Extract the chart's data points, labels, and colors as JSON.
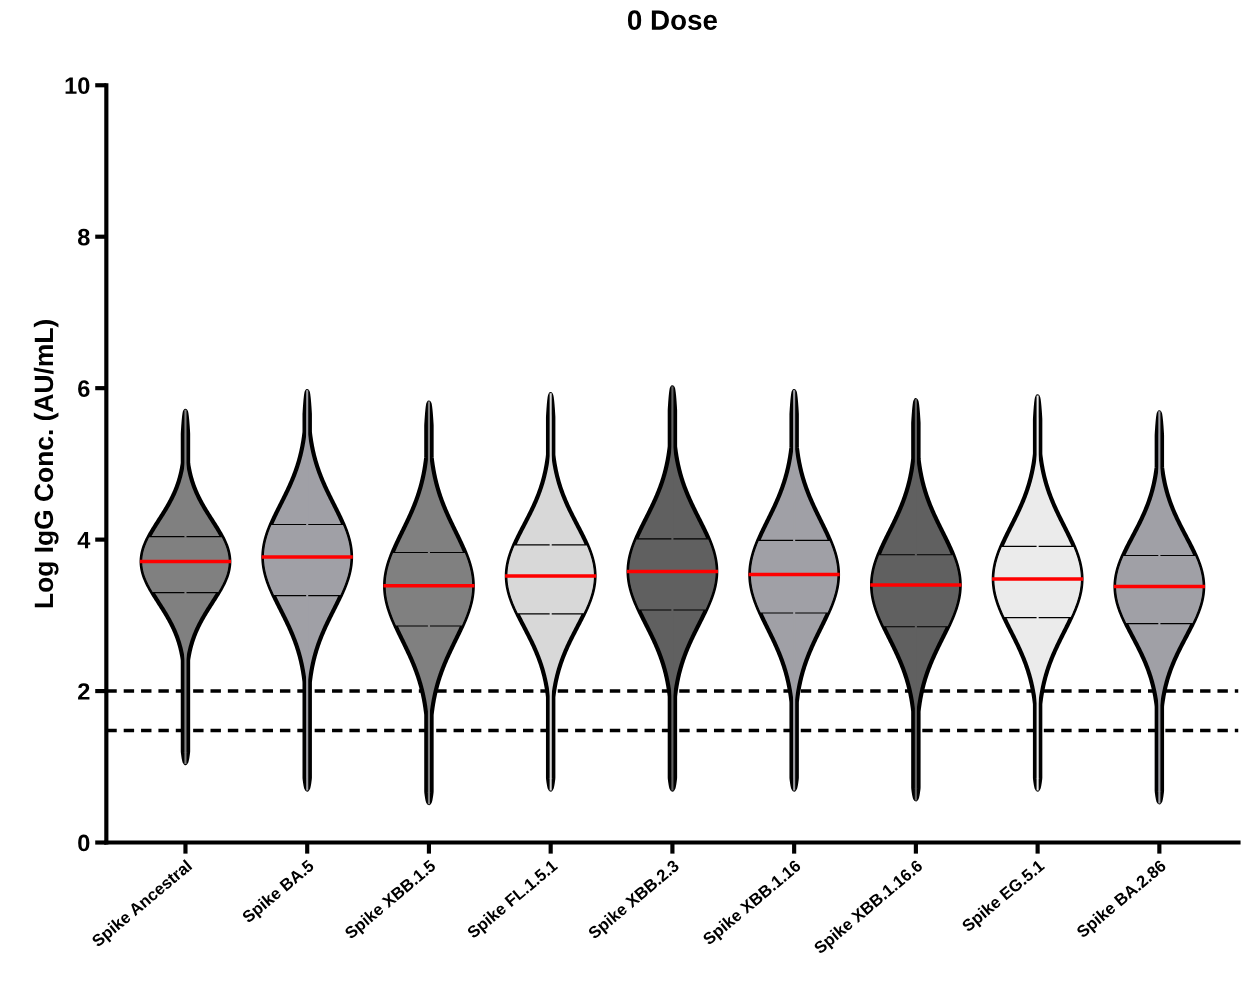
{
  "chart_data": {
    "type": "box",
    "title": "0 Dose",
    "ylabel": "Log IgG Conc. (AU/mL)",
    "categories": [
      "Spike Ancestral",
      "Spike BA.5",
      "Spike XBB.1.5",
      "Spike FL.1.5.1",
      "Spike XBB.2.3",
      "Spike XBB.1.16",
      "Spike XBB.1.16.6",
      "Spike EG.5.1",
      "Spike BA.2.86"
    ],
    "colors": [
      "#808080",
      "#a0a0a6",
      "#808080",
      "#d8d8d8",
      "#606060",
      "#a0a0a6",
      "#606060",
      "#ebebeb",
      "#a0a0a6"
    ],
    "boxes": [
      {
        "low": 1.05,
        "q1": 3.3,
        "median": 3.71,
        "q3": 4.04,
        "high": 5.7
      },
      {
        "low": 0.7,
        "q1": 3.26,
        "median": 3.77,
        "q3": 4.2,
        "high": 5.96
      },
      {
        "low": 0.52,
        "q1": 2.86,
        "median": 3.39,
        "q3": 3.83,
        "high": 5.81
      },
      {
        "low": 0.7,
        "q1": 3.02,
        "median": 3.52,
        "q3": 3.93,
        "high": 5.92
      },
      {
        "low": 0.7,
        "q1": 3.07,
        "median": 3.58,
        "q3": 4.01,
        "high": 6.01
      },
      {
        "low": 0.7,
        "q1": 3.03,
        "median": 3.54,
        "q3": 3.99,
        "high": 5.96
      },
      {
        "low": 0.57,
        "q1": 2.85,
        "median": 3.4,
        "q3": 3.8,
        "high": 5.84
      },
      {
        "low": 0.7,
        "q1": 2.97,
        "median": 3.48,
        "q3": 3.91,
        "high": 5.89
      },
      {
        "low": 0.53,
        "q1": 2.89,
        "median": 3.38,
        "q3": 3.79,
        "high": 5.68
      }
    ],
    "ylim": [
      0,
      10
    ],
    "yticks": [
      0,
      2,
      4,
      6,
      8,
      10
    ],
    "ref_lines": [
      {
        "axis": "y",
        "value": 2.0,
        "color": "#000000",
        "line_style": "dashed"
      },
      {
        "axis": "y",
        "value": 1.48,
        "color": "#000000",
        "line_style": "dashed"
      }
    ],
    "grid": false
  }
}
